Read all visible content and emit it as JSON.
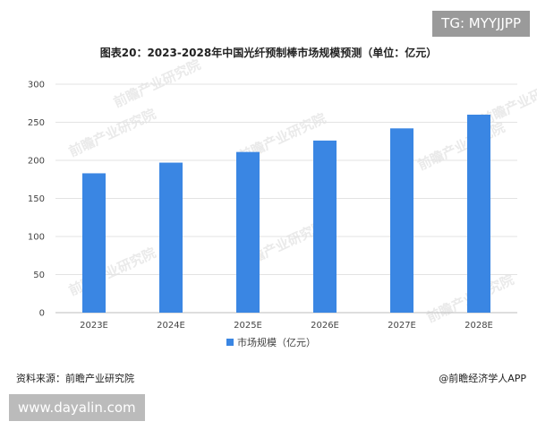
{
  "header": {
    "tag": "TG: MYYJJPP"
  },
  "chart_data": {
    "type": "bar",
    "title": "图表20：2023-2028年中国光纤预制棒市场规模预测（单位：亿元）",
    "categories": [
      "2023E",
      "2024E",
      "2025E",
      "2026E",
      "2027E",
      "2028E"
    ],
    "series": [
      {
        "name": "市场规模（亿元）",
        "values": [
          183,
          197,
          211,
          226,
          242,
          260
        ],
        "color": "#3a86e3"
      }
    ],
    "yticks": [
      0,
      50,
      100,
      150,
      200,
      250,
      300
    ],
    "ylim": [
      0,
      300
    ],
    "grid": true,
    "legend_position": "bottom"
  },
  "footer": {
    "source": "资料来源：前瞻产业研究院",
    "app": "@前瞻经济学人APP"
  },
  "overlay": {
    "watermark": "www.dayalin.com",
    "logo_watermark": "前瞻产业研究院"
  }
}
